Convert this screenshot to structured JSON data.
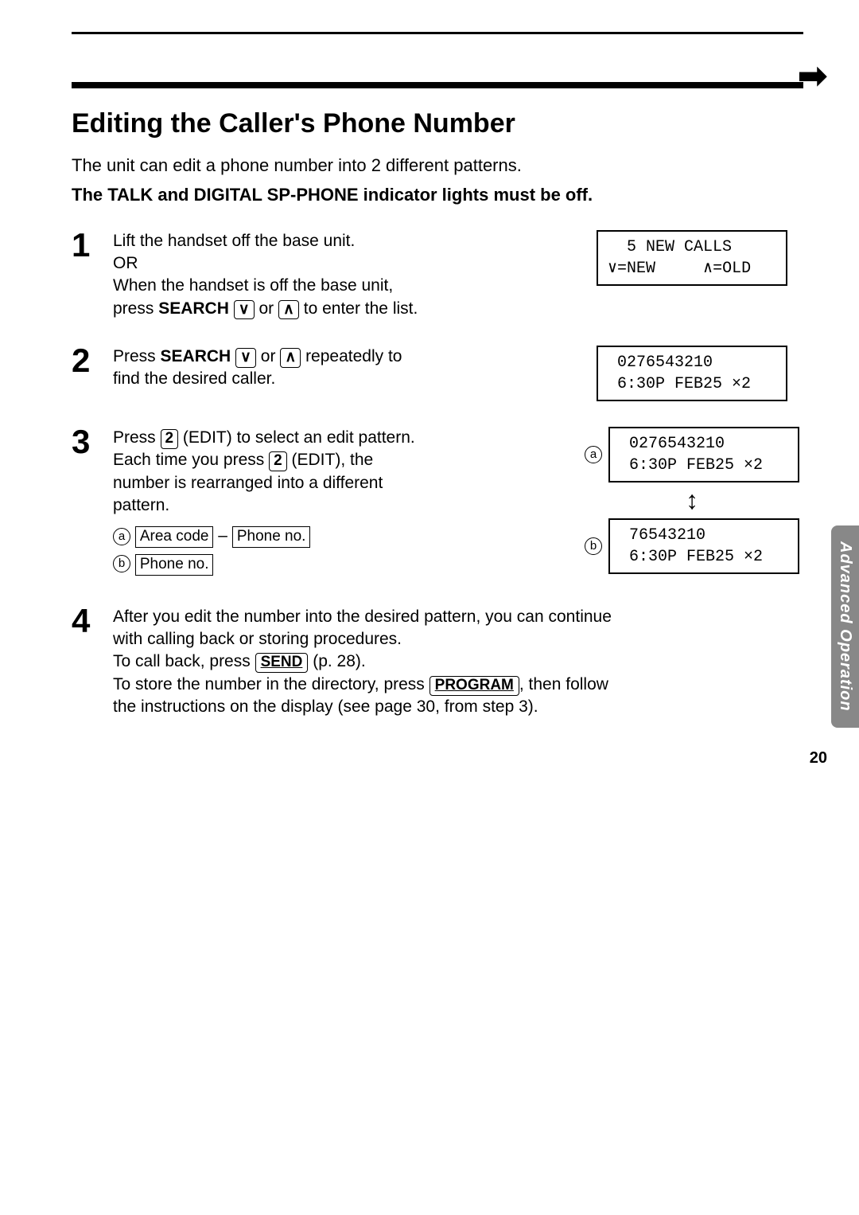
{
  "title": "Editing the Caller's Phone Number",
  "intro_line1": "The unit can edit a phone number into 2 different patterns.",
  "intro_line2": "The TALK and DIGITAL SP-PHONE indicator lights must be off.",
  "side_tab": "Advanced Operation",
  "page_number": "20",
  "steps": {
    "s1": {
      "num": "1",
      "line1": "Lift the handset off the base unit.",
      "line2": "OR",
      "line3a": "When the handset is off the base unit,",
      "line3b_pre": "press ",
      "search_label": "SEARCH",
      "or_word": " or ",
      "line3b_post": " to enter the list.",
      "lcd_l1": "  5 NEW CALLS",
      "lcd_l2": "∨=NEW     ∧=OLD"
    },
    "s2": {
      "num": "2",
      "pre": "Press ",
      "search_label": "SEARCH",
      "or_word": " or ",
      "post1": " repeatedly to",
      "post2": "find the desired caller.",
      "lcd_l1": " 0276543210",
      "lcd_l2": " 6:30P FEB25 ×2"
    },
    "s3": {
      "num": "3",
      "line1_pre": "Press ",
      "key2": "2",
      "line1_post": " (EDIT) to select an edit pattern.",
      "line2_pre": "Each time you press ",
      "line2_post": " (EDIT), the",
      "line3": "number is rearranged into a different",
      "line4": "pattern.",
      "a_label": "a",
      "b_label": "b",
      "area_code": "Area code",
      "dash": " – ",
      "phone_no": "Phone no.",
      "lcd_a_l1": " 0276543210",
      "lcd_a_l2": " 6:30P FEB25 ×2",
      "lcd_b_l1": " 76543210",
      "lcd_b_l2": " 6:30P FEB25 ×2"
    },
    "s4": {
      "num": "4",
      "l1": "After you edit the number into the desired pattern, you can continue",
      "l2": "with calling back or storing procedures.",
      "l3_pre": "To call back, press ",
      "send": "SEND",
      "l3_post": " (p. 28).",
      "l4_pre": "To store the number in the directory, press ",
      "program": "PROGRAM",
      "l4_post": ", then follow",
      "l5": "the instructions on the display (see page 30, from step 3)."
    }
  }
}
